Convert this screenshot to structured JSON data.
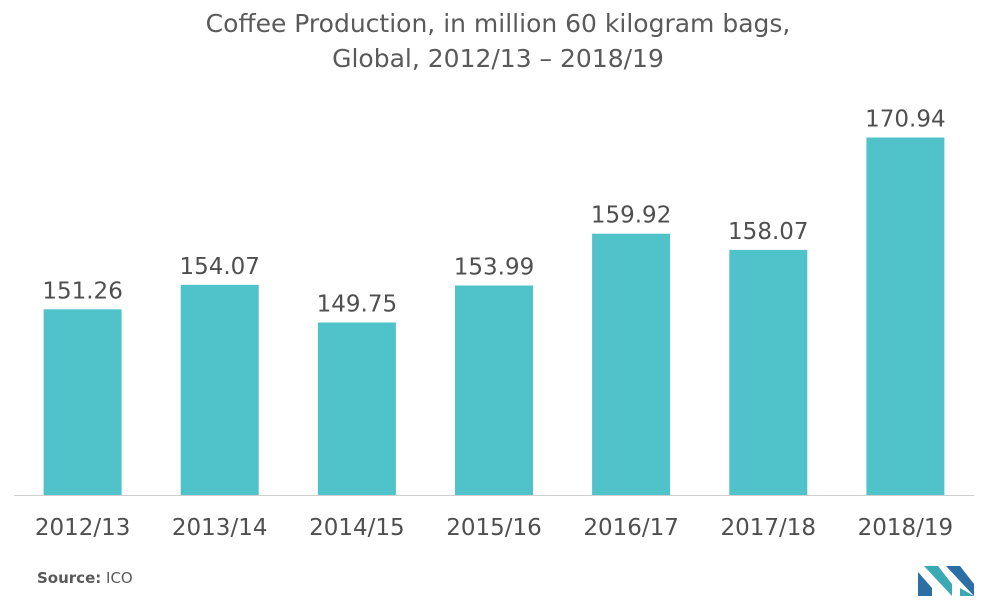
{
  "header": {
    "title_line1": "Coffee Production, in million 60 kilogram bags,",
    "title_line2": "Global, 2012/13 – 2018/19"
  },
  "footer": {
    "source_label": "Source:",
    "source_value": "ICO"
  },
  "colors": {
    "bar": "#4fc3c9",
    "text": "#4f4f4f",
    "axis": "#cfcfcf"
  },
  "chart_data": {
    "type": "bar",
    "title": "Coffee Production, in million 60 kilogram bags, Global, 2012/13 – 2018/19",
    "xlabel": "",
    "ylabel": "",
    "categories": [
      "2012/13",
      "2013/14",
      "2014/15",
      "2015/16",
      "2016/17",
      "2017/18",
      "2018/19"
    ],
    "values": [
      151.26,
      154.07,
      149.75,
      153.99,
      159.92,
      158.07,
      170.94
    ],
    "value_labels": [
      "151.26",
      "154.07",
      "149.75",
      "153.99",
      "159.92",
      "158.07",
      "170.94"
    ],
    "ylim": [
      130,
      175
    ],
    "grid": false,
    "legend": "none"
  }
}
